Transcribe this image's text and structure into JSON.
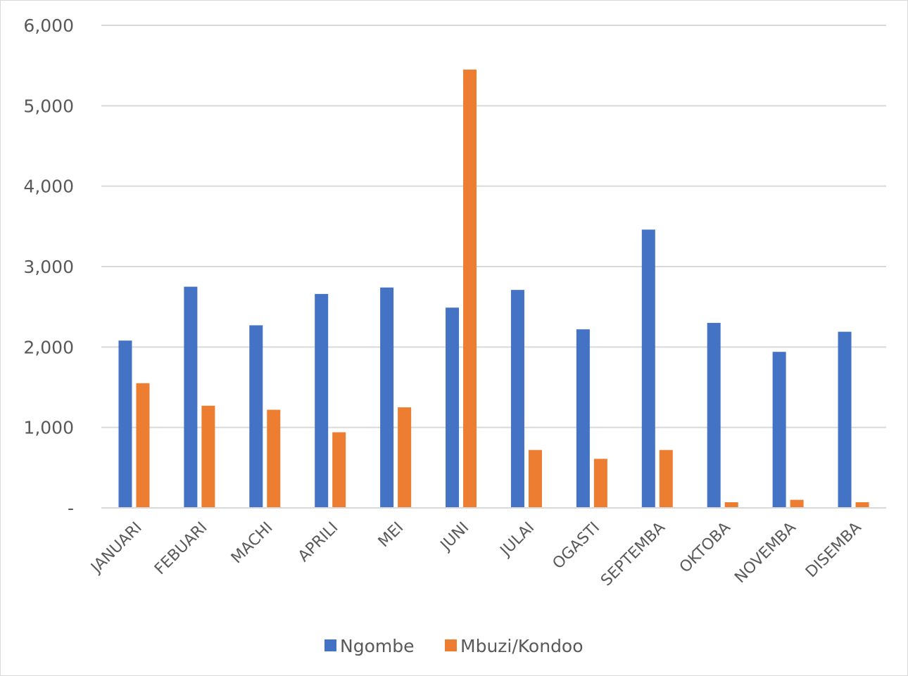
{
  "chart_data": {
    "type": "bar",
    "title": "",
    "xlabel": "",
    "ylabel": "",
    "categories": [
      "JANUARI",
      "FEBUARI",
      "MACHI",
      "APRILI",
      "MEI",
      "JUNI",
      "JULAI",
      "OGASTI",
      "SEPTEMBA",
      "OKTOBA",
      "NOVEMBA",
      "DISEMBA"
    ],
    "series": [
      {
        "name": "Ngombe",
        "color": "#4472c4",
        "values": [
          2080,
          2750,
          2270,
          2660,
          2740,
          2490,
          2710,
          2220,
          3460,
          2300,
          1940,
          2190
        ]
      },
      {
        "name": "Mbuzi/Kondoo",
        "color": "#ed7d31",
        "values": [
          1550,
          1270,
          1220,
          940,
          1250,
          5450,
          720,
          610,
          720,
          70,
          100,
          70
        ]
      }
    ],
    "ylim": [
      0,
      6000
    ],
    "yticks": [
      0,
      1000,
      2000,
      3000,
      4000,
      5000,
      6000
    ],
    "ytick_labels": [
      "-",
      "1,000",
      "2,000",
      "3,000",
      "4,000",
      "5,000",
      "6,000"
    ],
    "grid": true,
    "gridline_color": "#d9d9d9",
    "legend_position": "bottom"
  }
}
